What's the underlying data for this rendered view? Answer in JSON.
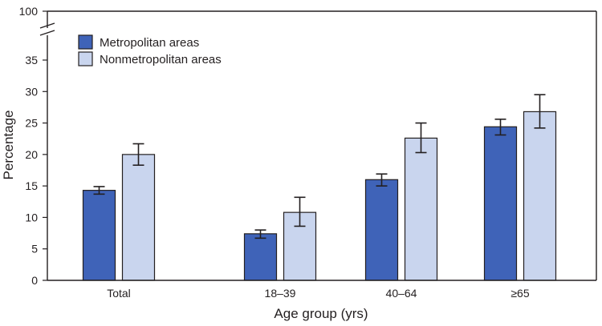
{
  "chart_data": {
    "type": "bar",
    "xlabel": "Age group (yrs)",
    "ylabel": "Percentage",
    "categories": [
      "Total",
      "18–39",
      "40–64",
      "≥65"
    ],
    "series": [
      {
        "name": "Metropolitan areas",
        "color": "#3f63b8",
        "values": [
          14.3,
          7.4,
          16.0,
          24.4
        ],
        "ci_low": [
          13.7,
          6.7,
          15.0,
          23.1
        ],
        "ci_high": [
          14.9,
          8.0,
          16.9,
          25.6
        ]
      },
      {
        "name": "Nonmetropolitan areas",
        "color": "#c9d5ee",
        "values": [
          20.0,
          10.8,
          22.6,
          26.8
        ],
        "ci_low": [
          18.3,
          8.6,
          20.3,
          24.2
        ],
        "ci_high": [
          21.7,
          13.2,
          25.0,
          29.5
        ]
      }
    ],
    "ylim": [
      0,
      35
    ],
    "yticks": [
      0,
      5,
      10,
      15,
      20,
      25,
      30,
      35
    ],
    "axis_break_top_label": "100",
    "legend_position": "top-left",
    "grid": false,
    "error_bars": true
  }
}
